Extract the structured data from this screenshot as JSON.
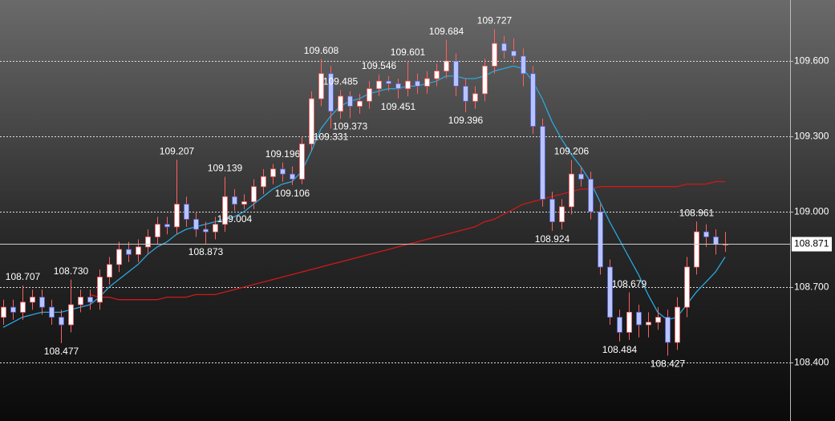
{
  "chart_data": {
    "type": "candlestick",
    "open": {
      "values": [
        108.58,
        108.62,
        108.6,
        108.64,
        108.66,
        108.62,
        108.58,
        108.55,
        108.63,
        108.66,
        108.64,
        108.74,
        108.79,
        108.85,
        108.83,
        108.86,
        108.9,
        108.95,
        108.94,
        109.03,
        108.97,
        108.93,
        108.92,
        108.95,
        109.06,
        109.03,
        109.04,
        109.1,
        109.14,
        109.17,
        109.15,
        109.13,
        109.27,
        109.45,
        109.55,
        109.4,
        109.46,
        109.42,
        109.44,
        109.49,
        109.52,
        109.51,
        109.49,
        109.52,
        109.5,
        109.53,
        109.56,
        109.6,
        109.5,
        109.44,
        109.47,
        109.58,
        109.67,
        109.64,
        109.62,
        109.55,
        109.34,
        109.05,
        108.96,
        109.02,
        109.15,
        109.13,
        109.0,
        108.78,
        108.58,
        108.52,
        108.6,
        108.55,
        108.56,
        108.58,
        108.48,
        108.62,
        108.78,
        108.92,
        108.9,
        108.87
      ]
    },
    "high": {
      "values": [
        108.65,
        108.65,
        108.707,
        108.69,
        108.69,
        108.65,
        108.61,
        108.73,
        108.69,
        108.69,
        108.77,
        108.82,
        108.88,
        108.88,
        108.89,
        108.93,
        108.98,
        108.98,
        109.207,
        109.06,
        109.0,
        108.96,
        108.98,
        109.139,
        109.09,
        109.07,
        109.13,
        109.17,
        109.19,
        109.196,
        109.18,
        109.3,
        109.48,
        109.608,
        109.58,
        109.485,
        109.48,
        109.47,
        109.52,
        109.546,
        109.54,
        109.53,
        109.601,
        109.55,
        109.56,
        109.59,
        109.684,
        109.63,
        109.53,
        109.5,
        109.61,
        109.727,
        109.7,
        109.69,
        109.65,
        109.58,
        109.37,
        109.08,
        109.05,
        109.206,
        109.18,
        109.16,
        109.03,
        108.81,
        108.61,
        108.679,
        108.63,
        108.6,
        108.62,
        108.61,
        108.66,
        108.82,
        108.961,
        108.95,
        108.93,
        108.92
      ],
      "value_labels": [
        null,
        null,
        "108.707",
        null,
        null,
        null,
        null,
        "108.730",
        null,
        null,
        null,
        null,
        null,
        null,
        null,
        null,
        null,
        null,
        "109.207",
        null,
        null,
        null,
        null,
        "109.139",
        null,
        null,
        null,
        null,
        null,
        "109.196",
        null,
        null,
        null,
        "109.608",
        null,
        "109.485",
        null,
        null,
        null,
        "109.546",
        null,
        null,
        "109.601",
        null,
        null,
        null,
        "109.684",
        null,
        null,
        null,
        null,
        "109.727",
        null,
        null,
        null,
        null,
        null,
        null,
        null,
        "109.206",
        null,
        null,
        null,
        null,
        null,
        "108.679",
        null,
        null,
        null,
        null,
        null,
        null,
        "108.961",
        null,
        null,
        null
      ]
    },
    "low": {
      "values": [
        108.55,
        108.57,
        108.57,
        108.61,
        108.59,
        108.55,
        108.477,
        108.52,
        108.6,
        108.61,
        108.61,
        108.71,
        108.76,
        108.8,
        108.8,
        108.83,
        108.87,
        108.91,
        108.91,
        108.94,
        108.9,
        108.873,
        108.89,
        108.92,
        109.004,
        109.01,
        109.01,
        109.07,
        109.11,
        109.12,
        109.106,
        109.11,
        109.24,
        109.42,
        109.331,
        109.37,
        109.373,
        109.39,
        109.41,
        109.46,
        109.48,
        109.451,
        109.46,
        109.47,
        109.47,
        109.5,
        109.53,
        109.46,
        109.396,
        109.41,
        109.44,
        109.55,
        109.61,
        109.59,
        109.5,
        109.31,
        109.02,
        108.924,
        108.93,
        108.99,
        109.1,
        108.97,
        108.75,
        108.55,
        108.484,
        108.49,
        108.5,
        108.5,
        108.53,
        108.427,
        108.45,
        108.58,
        108.75,
        108.86,
        108.83,
        108.84
      ],
      "value_labels": [
        null,
        null,
        null,
        null,
        null,
        null,
        "108.477",
        null,
        null,
        null,
        null,
        null,
        null,
        null,
        null,
        null,
        null,
        null,
        null,
        null,
        null,
        "108.873",
        null,
        null,
        "109.004",
        null,
        null,
        null,
        null,
        null,
        "109.106",
        null,
        null,
        null,
        "109.331",
        null,
        "109.373",
        null,
        null,
        null,
        null,
        "109.451",
        null,
        null,
        null,
        null,
        null,
        null,
        "109.396",
        null,
        null,
        null,
        null,
        null,
        null,
        null,
        null,
        "108.924",
        null,
        null,
        null,
        null,
        null,
        null,
        "108.484",
        null,
        null,
        null,
        null,
        "108.427",
        null,
        null,
        null,
        null,
        null,
        null
      ]
    },
    "close": {
      "values": [
        108.62,
        108.6,
        108.64,
        108.66,
        108.62,
        108.58,
        108.55,
        108.63,
        108.66,
        108.64,
        108.74,
        108.79,
        108.85,
        108.83,
        108.86,
        108.9,
        108.95,
        108.94,
        109.03,
        108.97,
        108.93,
        108.92,
        108.95,
        109.06,
        109.03,
        109.04,
        109.1,
        109.14,
        109.17,
        109.15,
        109.13,
        109.27,
        109.45,
        109.55,
        109.4,
        109.46,
        109.42,
        109.44,
        109.49,
        109.52,
        109.51,
        109.49,
        109.52,
        109.5,
        109.53,
        109.56,
        109.6,
        109.5,
        109.44,
        109.47,
        109.58,
        109.67,
        109.64,
        109.62,
        109.55,
        109.34,
        109.05,
        108.96,
        109.02,
        109.15,
        109.13,
        109.0,
        108.78,
        108.58,
        108.52,
        108.6,
        108.55,
        108.56,
        108.58,
        108.48,
        108.62,
        108.78,
        108.92,
        108.9,
        108.87,
        108.871
      ]
    },
    "up_color": "#ffffff",
    "down_color": "#b8c4ff",
    "wick_color": "#ff6060",
    "series": [
      {
        "color": "#29a8e0",
        "values": [
          108.54,
          108.56,
          108.58,
          108.59,
          108.6,
          108.6,
          108.6,
          108.61,
          108.62,
          108.63,
          108.66,
          108.7,
          108.73,
          108.76,
          108.79,
          108.83,
          108.86,
          108.88,
          108.91,
          108.93,
          108.94,
          108.95,
          108.96,
          108.97,
          108.98,
          109.0,
          109.03,
          109.06,
          109.09,
          109.11,
          109.12,
          109.16,
          109.24,
          109.33,
          109.38,
          109.42,
          109.44,
          109.45,
          109.47,
          109.48,
          109.49,
          109.49,
          109.5,
          109.5,
          109.51,
          109.52,
          109.54,
          109.54,
          109.53,
          109.53,
          109.54,
          109.56,
          109.57,
          109.58,
          109.57,
          109.52,
          109.45,
          109.36,
          109.29,
          109.23,
          109.18,
          109.12,
          109.04,
          108.96,
          108.89,
          108.82,
          108.75,
          108.67,
          108.6,
          108.57,
          108.58,
          108.63,
          108.68,
          108.72,
          108.76,
          108.82
        ]
      },
      {
        "color": "#d01818",
        "values": [
          null,
          null,
          null,
          null,
          null,
          null,
          null,
          null,
          null,
          108.67,
          108.66,
          108.66,
          108.65,
          108.65,
          108.65,
          108.65,
          108.65,
          108.66,
          108.66,
          108.66,
          108.67,
          108.67,
          108.67,
          108.68,
          108.69,
          108.7,
          108.71,
          108.72,
          108.73,
          108.74,
          108.75,
          108.76,
          108.77,
          108.78,
          108.79,
          108.8,
          108.81,
          108.82,
          108.83,
          108.84,
          108.85,
          108.86,
          108.87,
          108.88,
          108.89,
          108.9,
          108.91,
          108.92,
          108.93,
          108.94,
          108.96,
          108.97,
          108.99,
          109.01,
          109.03,
          109.04,
          109.05,
          109.06,
          109.07,
          109.08,
          109.09,
          109.09,
          109.1,
          109.1,
          109.1,
          109.1,
          109.1,
          109.1,
          109.1,
          109.1,
          109.1,
          109.11,
          109.11,
          109.11,
          109.12,
          109.12
        ]
      }
    ],
    "ylim": [
      108.167,
      109.843
    ],
    "yticks": [
      {
        "value": 108.4,
        "label": "108.400"
      },
      {
        "value": 108.7,
        "label": "108.700"
      },
      {
        "value": 109.0,
        "label": "109.000"
      },
      {
        "value": 109.3,
        "label": "109.300"
      },
      {
        "value": 109.6,
        "label": "109.600"
      }
    ],
    "grid": true
  }
}
